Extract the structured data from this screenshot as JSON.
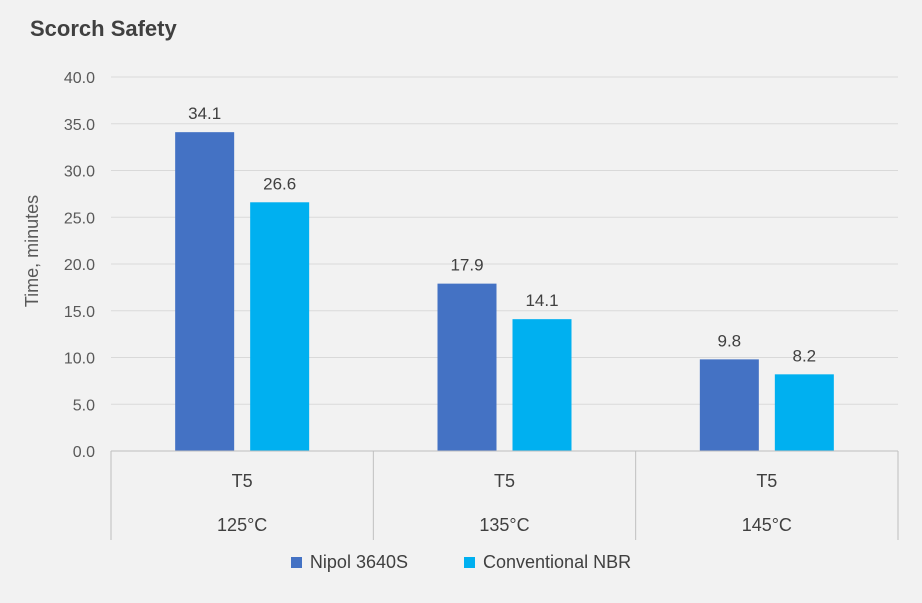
{
  "chart_data": {
    "type": "bar",
    "title": "Scorch Safety",
    "ylabel": "Time, minutes",
    "xlabel": "",
    "ylim": [
      0,
      40
    ],
    "ytick_step": 5,
    "ytick_decimals": 1,
    "grid": true,
    "legend_position": "bottom",
    "categories": [
      "T5",
      "T5",
      "T5"
    ],
    "group_labels": [
      "125°C",
      "135°C",
      "145°C"
    ],
    "series": [
      {
        "name": "Nipol 3640S",
        "color": "#4472c4",
        "values": [
          34.1,
          17.9,
          9.8
        ]
      },
      {
        "name": "Conventional NBR",
        "color": "#00b0f0",
        "values": [
          26.6,
          14.1,
          8.2
        ]
      }
    ]
  }
}
